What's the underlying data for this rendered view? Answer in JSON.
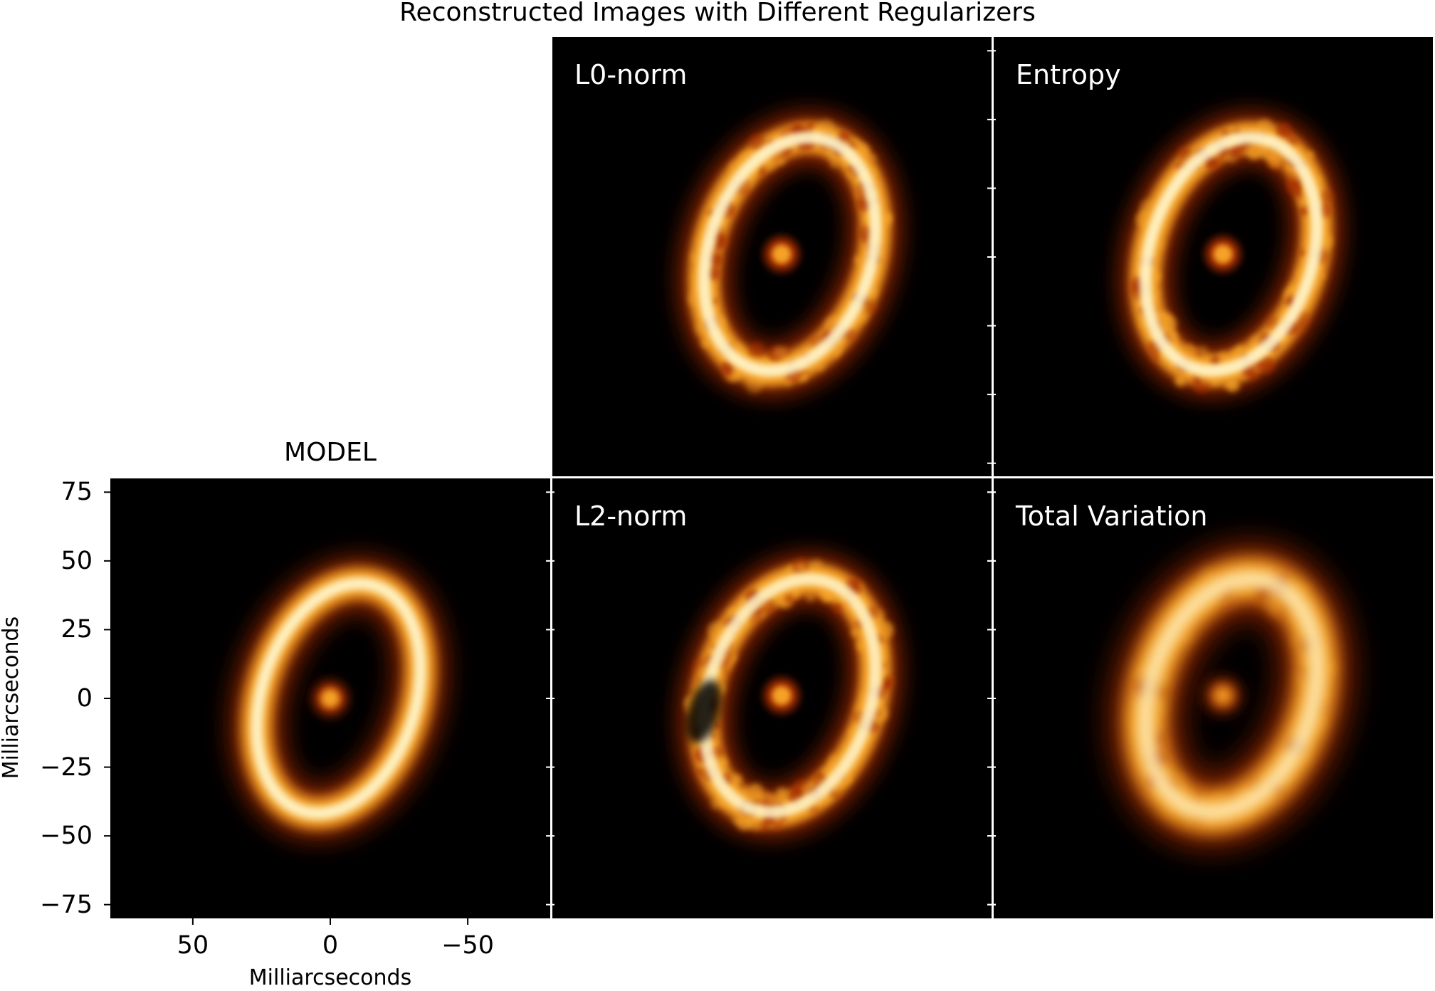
{
  "figure": {
    "title": "Reconstructed Images with Different Regularizers"
  },
  "chart_data": [
    {
      "type": "heatmap",
      "id": "model",
      "title": "MODEL",
      "xlabel": "Milliarcseconds",
      "ylabel": "Milliarcseconds",
      "x_reversed": true,
      "xlim": [
        80,
        -80
      ],
      "ylim": [
        -80,
        80
      ],
      "xticks": [
        50,
        0,
        -50
      ],
      "xtick_labels": [
        "50",
        "0",
        "−50"
      ],
      "yticks": [
        75,
        50,
        25,
        0,
        -25,
        -50,
        -75
      ],
      "ytick_labels": [
        "75",
        "50",
        "25",
        "0",
        "−25",
        "−50",
        "−75"
      ],
      "colormap": "afmhot",
      "features": {
        "ring": {
          "center_mas": [
            -3,
            0
          ],
          "semi_major_mas": 43,
          "semi_minor_mas": 28,
          "tilt_deg_from_vertical": 18,
          "width_mas": 9,
          "brightest_side": "west"
        },
        "central_source": {
          "center_mas": [
            0,
            0
          ],
          "radius_mas": 3.5
        }
      }
    },
    {
      "type": "heatmap",
      "id": "l0",
      "title": "L0-norm",
      "colormap": "afmhot",
      "features": {
        "ring": "noisy reconstruction of model ring",
        "central_source": "present"
      }
    },
    {
      "type": "heatmap",
      "id": "entropy",
      "title": "Entropy",
      "colormap": "afmhot",
      "features": {
        "ring": "noisy reconstruction of model ring",
        "central_source": "present"
      }
    },
    {
      "type": "heatmap",
      "id": "l2",
      "title": "L2-norm",
      "colormap": "afmhot",
      "features": {
        "ring": "noisy reconstruction, ring broken on west side",
        "central_source": "present"
      }
    },
    {
      "type": "heatmap",
      "id": "tv",
      "title": "Total Variation",
      "colormap": "afmhot",
      "features": {
        "ring": "smooth, broadened reconstruction",
        "central_source": "present"
      }
    }
  ],
  "colors": {
    "background": "#000000",
    "ring_core": "#fff6cc",
    "ring_mid": "#f5a227",
    "ring_outer": "#a32a06",
    "separator": "#ffffff"
  }
}
